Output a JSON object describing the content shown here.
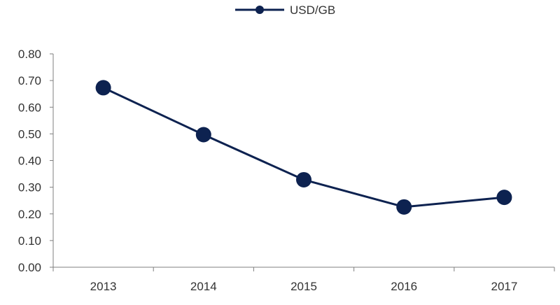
{
  "chart_data": {
    "type": "line",
    "title": "",
    "xlabel": "",
    "ylabel": "",
    "categories": [
      "2013",
      "2014",
      "2015",
      "2016",
      "2017"
    ],
    "series": [
      {
        "name": "USD/GB",
        "color": "#0d2250",
        "values": [
          0.673,
          0.497,
          0.328,
          0.226,
          0.262
        ]
      }
    ],
    "ylim": [
      0,
      0.8
    ],
    "yticks": [
      "0.00",
      "0.10",
      "0.20",
      "0.30",
      "0.40",
      "0.50",
      "0.60",
      "0.70",
      "0.80"
    ],
    "grid": false,
    "legend_position": "top-center",
    "axis_color": "#7f7f7f"
  }
}
